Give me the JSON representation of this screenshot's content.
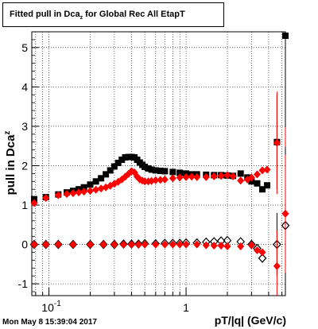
{
  "title": {
    "prefix": "Fitted pull in Dca",
    "subscript": "z",
    "suffix": " for Global Rec All EtapT"
  },
  "datestamp": "Mon May  8 15:39:04 2017",
  "chart_data": {
    "type": "scatter",
    "title": "Fitted pull in Dca_z for Global Rec All EtapT",
    "xlabel": "pT/|q| (GeV/c)",
    "ylabel": "pull in Dca_z",
    "xscale": "log",
    "xlim": [
      0.075,
      5.3
    ],
    "ylim": [
      -1.3,
      5.4
    ],
    "x_tick_labels": [
      "10^-1",
      "1"
    ],
    "y_ticks": [
      -1,
      0,
      1,
      2,
      3,
      4,
      5
    ],
    "grid": true,
    "series": [
      {
        "marker": "square",
        "color": "#000000",
        "role": "sigma",
        "points": [
          [
            0.078,
            1.15
          ],
          [
            0.095,
            1.2
          ],
          [
            0.117,
            1.27
          ],
          [
            0.135,
            1.32
          ],
          [
            0.15,
            1.36
          ],
          [
            0.165,
            1.4
          ],
          [
            0.18,
            1.45
          ],
          [
            0.2,
            1.52
          ],
          [
            0.22,
            1.6
          ],
          [
            0.24,
            1.68
          ],
          [
            0.26,
            1.78
          ],
          [
            0.28,
            1.88
          ],
          [
            0.3,
            1.98
          ],
          [
            0.32,
            2.07
          ],
          [
            0.34,
            2.15
          ],
          [
            0.36,
            2.21
          ],
          [
            0.38,
            2.22
          ],
          [
            0.4,
            2.22
          ],
          [
            0.42,
            2.21
          ],
          [
            0.44,
            2.15
          ],
          [
            0.46,
            2.08
          ],
          [
            0.48,
            2.02
          ],
          [
            0.5,
            1.97
          ],
          [
            0.53,
            1.93
          ],
          [
            0.56,
            1.9
          ],
          [
            0.6,
            1.88
          ],
          [
            0.65,
            1.87
          ],
          [
            0.7,
            1.86
          ],
          [
            0.8,
            1.84
          ],
          [
            0.9,
            1.82
          ],
          [
            1.0,
            1.8
          ],
          [
            1.1,
            1.78
          ],
          [
            1.2,
            1.78
          ],
          [
            1.4,
            1.77
          ],
          [
            1.6,
            1.76
          ],
          [
            1.8,
            1.76
          ],
          [
            2.0,
            1.75
          ],
          [
            2.2,
            1.74
          ],
          [
            2.5,
            1.8
          ],
          [
            2.8,
            1.7
          ],
          [
            3.0,
            1.6
          ],
          [
            3.3,
            1.55
          ],
          [
            3.6,
            1.4
          ],
          [
            3.9,
            1.5
          ],
          [
            4.6,
            2.6
          ],
          [
            5.3,
            5.3
          ]
        ],
        "errors": [
          [
            4.6,
            1.2
          ],
          [
            5.3,
            3.0
          ]
        ]
      },
      {
        "marker": "diamond",
        "color": "#ff0000",
        "role": "sigma",
        "points": [
          [
            0.078,
            1.05
          ],
          [
            0.095,
            1.18
          ],
          [
            0.117,
            1.25
          ],
          [
            0.135,
            1.28
          ],
          [
            0.15,
            1.3
          ],
          [
            0.165,
            1.32
          ],
          [
            0.18,
            1.34
          ],
          [
            0.2,
            1.36
          ],
          [
            0.22,
            1.39
          ],
          [
            0.24,
            1.42
          ],
          [
            0.26,
            1.45
          ],
          [
            0.28,
            1.49
          ],
          [
            0.3,
            1.54
          ],
          [
            0.32,
            1.59
          ],
          [
            0.34,
            1.65
          ],
          [
            0.36,
            1.72
          ],
          [
            0.38,
            1.79
          ],
          [
            0.4,
            1.86
          ],
          [
            0.42,
            1.83
          ],
          [
            0.44,
            1.72
          ],
          [
            0.46,
            1.65
          ],
          [
            0.48,
            1.62
          ],
          [
            0.5,
            1.6
          ],
          [
            0.53,
            1.6
          ],
          [
            0.56,
            1.61
          ],
          [
            0.6,
            1.63
          ],
          [
            0.65,
            1.64
          ],
          [
            0.7,
            1.65
          ],
          [
            0.8,
            1.68
          ],
          [
            0.9,
            1.7
          ],
          [
            1.0,
            1.71
          ],
          [
            1.1,
            1.72
          ],
          [
            1.2,
            1.71
          ],
          [
            1.4,
            1.71
          ],
          [
            1.6,
            1.73
          ],
          [
            1.8,
            1.74
          ],
          [
            2.0,
            1.76
          ],
          [
            2.2,
            1.73
          ],
          [
            2.5,
            1.62
          ],
          [
            2.8,
            1.65
          ],
          [
            3.0,
            1.7
          ],
          [
            3.3,
            1.78
          ],
          [
            3.6,
            1.88
          ],
          [
            3.9,
            1.9
          ],
          [
            4.6,
            2.58
          ],
          [
            5.3,
            0.78
          ]
        ],
        "errors": [
          [
            4.6,
            1.3
          ],
          [
            5.3,
            2.2
          ]
        ]
      },
      {
        "marker": "diamond-open",
        "color": "#000000",
        "role": "mean",
        "points": [
          [
            0.078,
            0.0
          ],
          [
            0.095,
            0.0
          ],
          [
            0.117,
            0.0
          ],
          [
            0.15,
            0.0
          ],
          [
            0.2,
            0.0
          ],
          [
            0.25,
            0.0
          ],
          [
            0.3,
            0.0
          ],
          [
            0.35,
            0.01
          ],
          [
            0.4,
            0.01
          ],
          [
            0.45,
            0.01
          ],
          [
            0.5,
            0.02
          ],
          [
            0.6,
            0.02
          ],
          [
            0.7,
            0.03
          ],
          [
            0.8,
            0.03
          ],
          [
            0.9,
            0.03
          ],
          [
            1.0,
            0.04
          ],
          [
            1.2,
            0.04
          ],
          [
            1.4,
            0.06
          ],
          [
            1.6,
            0.07
          ],
          [
            1.8,
            0.09
          ],
          [
            2.0,
            0.1
          ],
          [
            2.5,
            0.07
          ],
          [
            3.0,
            0.0
          ],
          [
            3.3,
            -0.1
          ],
          [
            3.6,
            -0.35
          ],
          [
            4.6,
            0.0
          ],
          [
            5.3,
            0.48
          ]
        ],
        "errors": [
          [
            4.6,
            0.8
          ],
          [
            5.3,
            2.0
          ]
        ]
      },
      {
        "marker": "diamond",
        "color": "#ff0000",
        "role": "mean",
        "points": [
          [
            0.078,
            0.0
          ],
          [
            0.095,
            0.0
          ],
          [
            0.117,
            0.0
          ],
          [
            0.15,
            0.0
          ],
          [
            0.2,
            0.0
          ],
          [
            0.25,
            0.0
          ],
          [
            0.3,
            0.0
          ],
          [
            0.35,
            0.0
          ],
          [
            0.4,
            0.0
          ],
          [
            0.45,
            0.0
          ],
          [
            0.5,
            0.0
          ],
          [
            0.6,
            0.0
          ],
          [
            0.7,
            0.0
          ],
          [
            0.8,
            0.0
          ],
          [
            0.9,
            0.0
          ],
          [
            1.0,
            0.0
          ],
          [
            1.2,
            0.0
          ],
          [
            1.4,
            -0.02
          ],
          [
            1.6,
            -0.03
          ],
          [
            1.8,
            -0.03
          ],
          [
            2.0,
            -0.05
          ],
          [
            2.5,
            -0.05
          ],
          [
            3.0,
            -0.02
          ],
          [
            3.3,
            -0.15
          ],
          [
            3.6,
            -0.2
          ],
          [
            4.6,
            -0.55
          ],
          [
            5.3,
            0.78
          ]
        ],
        "errors": [
          [
            4.6,
            0.9
          ],
          [
            5.3,
            1.5
          ]
        ]
      }
    ]
  }
}
